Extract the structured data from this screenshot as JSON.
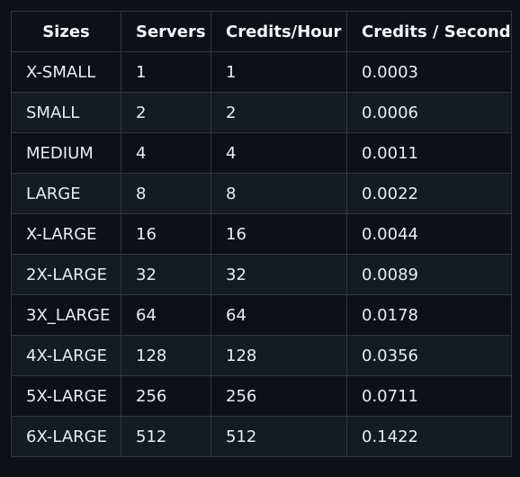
{
  "table": {
    "headers": [
      "Sizes",
      "Servers",
      "Credits/Hour",
      "Credits / Second"
    ],
    "rows": [
      [
        "X-SMALL",
        "1",
        "1",
        "0.0003"
      ],
      [
        "SMALL",
        "2",
        "2",
        "0.0006"
      ],
      [
        "MEDIUM",
        "4",
        "4",
        "0.0011"
      ],
      [
        "LARGE",
        "8",
        "8",
        "0.0022"
      ],
      [
        "X-LARGE",
        "16",
        "16",
        "0.0044"
      ],
      [
        "2X-LARGE",
        "32",
        "32",
        "0.0089"
      ],
      [
        "3X_LARGE",
        "64",
        "64",
        "0.0178"
      ],
      [
        "4X-LARGE",
        "128",
        "128",
        "0.0356"
      ],
      [
        "5X-LARGE",
        "256",
        "256",
        "0.0711"
      ],
      [
        "6X-LARGE",
        "512",
        "512",
        "0.1422"
      ]
    ]
  },
  "colors": {
    "background": "#0d1117",
    "row_alt": "#161b22",
    "border": "#30363d",
    "text": "#e6edf3"
  }
}
